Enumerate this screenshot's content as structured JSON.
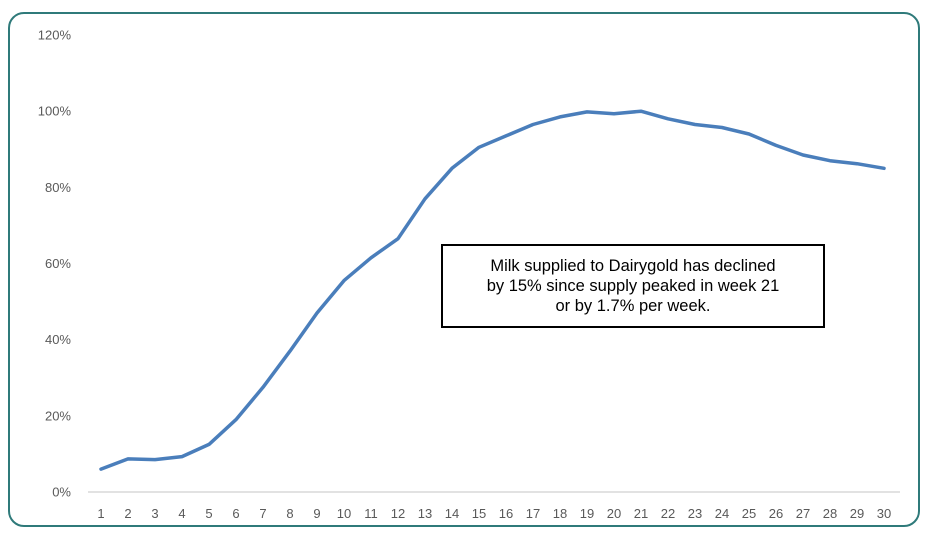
{
  "chart_data": {
    "type": "line",
    "title": "",
    "xlabel": "",
    "ylabel": "",
    "x": [
      1,
      2,
      3,
      4,
      5,
      6,
      7,
      8,
      9,
      10,
      11,
      12,
      13,
      14,
      15,
      16,
      17,
      18,
      19,
      20,
      21,
      22,
      23,
      24,
      25,
      26,
      27,
      28,
      29,
      30
    ],
    "series": [
      {
        "values": [
          6,
          8.7,
          8.5,
          9.3,
          12.5,
          19,
          27.5,
          37,
          47,
          55.5,
          61.5,
          66.5,
          77,
          85,
          90.5,
          93.5,
          96.5,
          98.5,
          99.8,
          99.3,
          100,
          98,
          96.5,
          95.7,
          94,
          91,
          88.5,
          87,
          86.2,
          85
        ],
        "color": "#4a7ebb"
      }
    ],
    "ylim": [
      0,
      120
    ],
    "yticks": [
      "0%",
      "20%",
      "40%",
      "60%",
      "80%",
      "100%",
      "120%"
    ],
    "xticks": [
      "1",
      "2",
      "3",
      "4",
      "5",
      "6",
      "7",
      "8",
      "9",
      "10",
      "11",
      "12",
      "13",
      "14",
      "15",
      "16",
      "17",
      "18",
      "19",
      "20",
      "21",
      "22",
      "23",
      "24",
      "25",
      "26",
      "27",
      "28",
      "29",
      "30"
    ],
    "grid": false,
    "legend": "none",
    "annotation": [
      "Milk supplied to Dairygold has declined",
      "by 15% since supply peaked in week 21",
      "or by 1.7% per week."
    ]
  },
  "colors": {
    "frame": "#2f7a7a",
    "line": "#4a7ebb",
    "axis": "#d9d9d9",
    "tick_text": "#595959"
  }
}
